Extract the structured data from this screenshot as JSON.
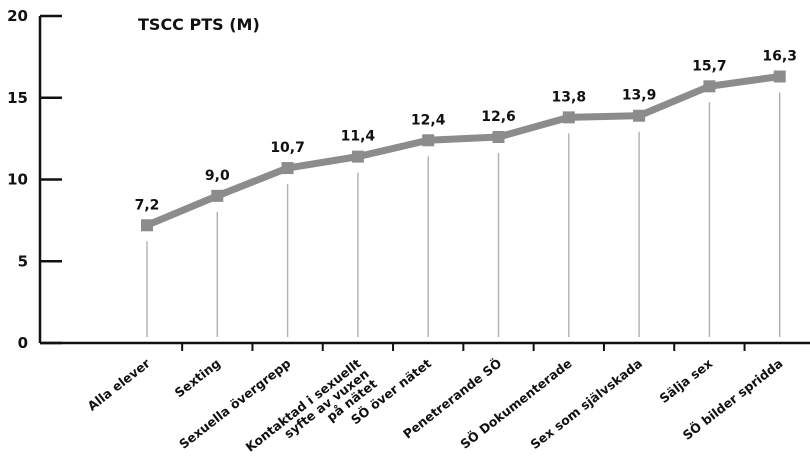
{
  "chart_data": {
    "type": "line",
    "title": "TSCC PTS (M)",
    "categories": [
      [
        "Alla elever"
      ],
      [
        "Sexting"
      ],
      [
        "Sexuella övergrepp"
      ],
      [
        "Kontaktad i sexuellt",
        "syfte av vuxen",
        "på nätet"
      ],
      [
        "SÖ över nätet"
      ],
      [
        "Penetrerande SÖ"
      ],
      [
        "SÖ Dokumenterade"
      ],
      [
        "Sex som självskada"
      ],
      [
        "Sälja sex"
      ],
      [
        "SÖ bilder spridda"
      ]
    ],
    "values": [
      7.2,
      9.0,
      10.7,
      11.4,
      12.4,
      12.6,
      13.8,
      13.9,
      15.7,
      16.3
    ],
    "value_labels": [
      "7,2",
      "9,0",
      "10,7",
      "11,4",
      "12,4",
      "12,6",
      "13,8",
      "13,9",
      "15,7",
      "16,3"
    ],
    "ylim": [
      0,
      20
    ],
    "yticks": [
      0,
      5,
      10,
      15,
      20
    ],
    "grid": false,
    "line_color": "#8c8c8c",
    "drop_line_color": "#b0b0b0",
    "axis_color": "#111111"
  }
}
